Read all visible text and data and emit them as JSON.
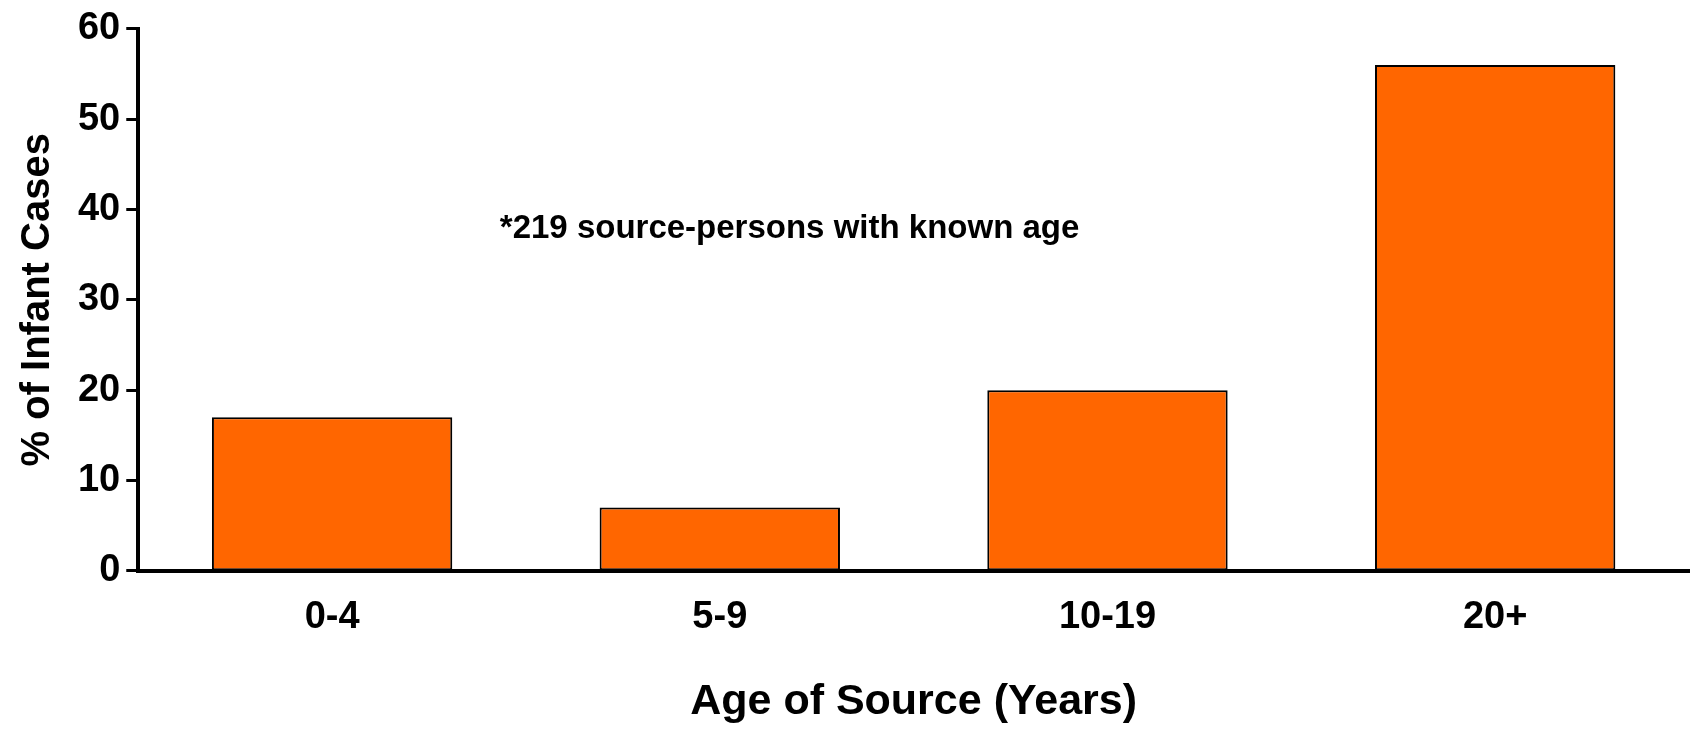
{
  "chart_data": {
    "type": "bar",
    "xlabel": "Age of Source (Years)",
    "ylabel": "% of Infant Cases",
    "categories": [
      "0-4",
      "5-9",
      "10-19",
      "20+"
    ],
    "values": [
      17,
      7,
      20,
      56
    ],
    "color": "#ff6600",
    "ylim": [
      0,
      60
    ],
    "yticks": [
      0,
      10,
      20,
      30,
      40,
      50,
      60
    ],
    "grid": false,
    "legend": false,
    "annotations": [
      "*219 source-persons with known age"
    ]
  }
}
